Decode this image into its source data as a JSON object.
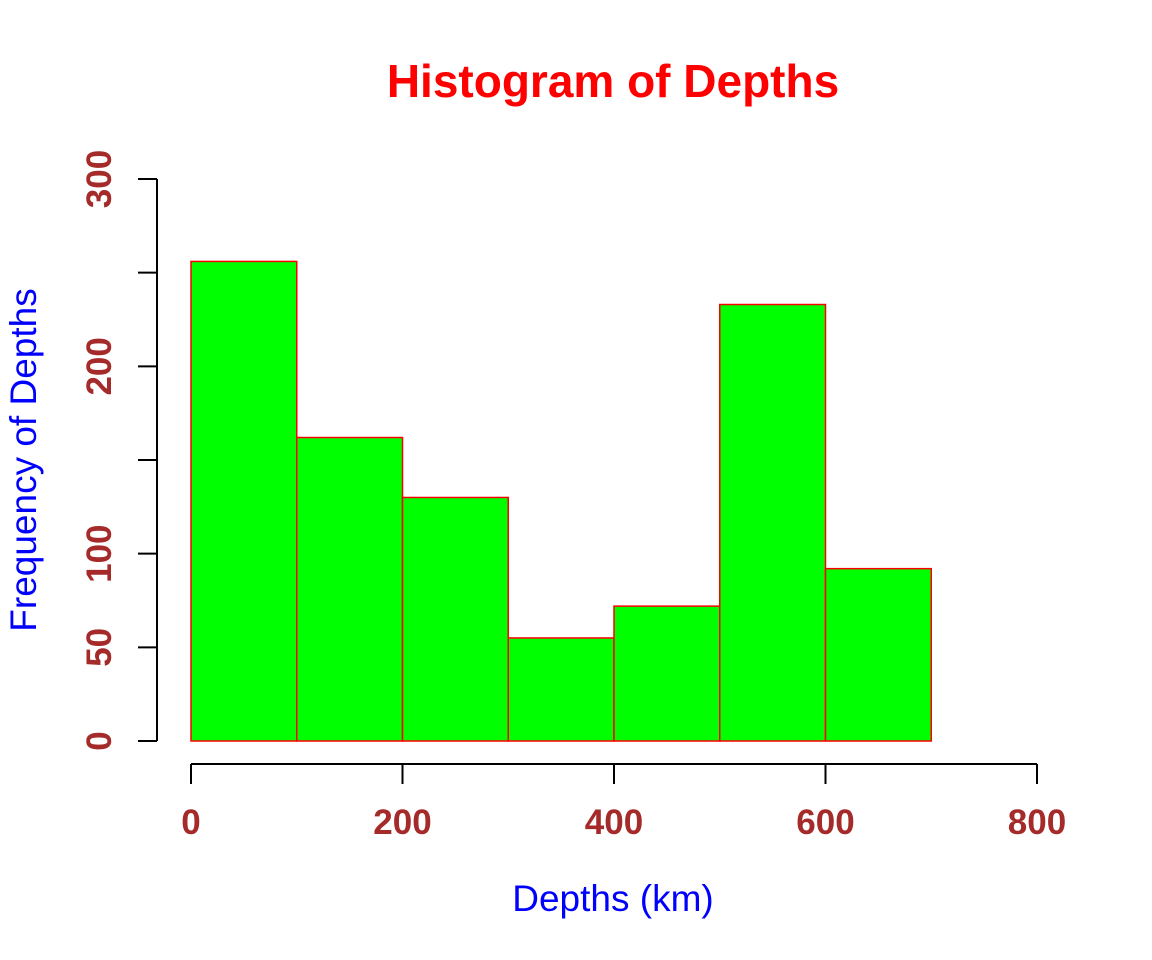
{
  "chart_data": {
    "type": "bar",
    "title": "Histogram of Depths",
    "xlabel": "Depths (km)",
    "ylabel": "Frequency of Depths",
    "bins": [
      {
        "start": 0,
        "end": 100,
        "count": 256
      },
      {
        "start": 100,
        "end": 200,
        "count": 162
      },
      {
        "start": 200,
        "end": 300,
        "count": 130
      },
      {
        "start": 300,
        "end": 400,
        "count": 55
      },
      {
        "start": 400,
        "end": 500,
        "count": 72
      },
      {
        "start": 500,
        "end": 600,
        "count": 233
      },
      {
        "start": 600,
        "end": 700,
        "count": 92
      }
    ],
    "xlim": [
      0,
      800
    ],
    "ylim": [
      0,
      300
    ],
    "x_ticks": [
      0,
      200,
      400,
      600,
      800
    ],
    "x_tick_labels": [
      "0",
      "200",
      "400",
      "600",
      "800"
    ],
    "y_ticks": [
      0,
      50,
      100,
      150,
      200,
      250,
      300
    ],
    "y_tick_labels": [
      "0",
      "50",
      "100",
      "",
      "200",
      "",
      "300"
    ],
    "bar_fill": "#00ff00",
    "bar_border": "#ff0000",
    "title_color": "#ff0000",
    "axis_title_color": "#0000ff",
    "tick_label_color": "#a52a2a",
    "grid": false,
    "legend": "none"
  }
}
